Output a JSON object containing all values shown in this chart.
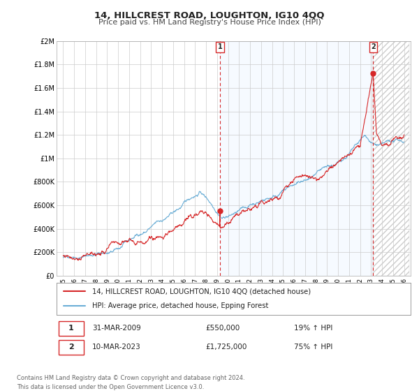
{
  "title": "14, HILLCREST ROAD, LOUGHTON, IG10 4QQ",
  "subtitle": "Price paid vs. HM Land Registry's House Price Index (HPI)",
  "ylabel_ticks": [
    "£0",
    "£200K",
    "£400K",
    "£600K",
    "£800K",
    "£1M",
    "£1.2M",
    "£1.4M",
    "£1.6M",
    "£1.8M",
    "£2M"
  ],
  "ytick_values": [
    0,
    200000,
    400000,
    600000,
    800000,
    1000000,
    1200000,
    1400000,
    1600000,
    1800000,
    2000000
  ],
  "ylim": [
    0,
    2000000
  ],
  "hpi_color": "#6baed6",
  "price_color": "#d62728",
  "marker1_year": 2009.25,
  "marker1_price": 550000,
  "marker2_year": 2023.19,
  "marker2_price": 1725000,
  "legend_line1": "14, HILLCREST ROAD, LOUGHTON, IG10 4QQ (detached house)",
  "legend_line2": "HPI: Average price, detached house, Epping Forest",
  "note1_date": "31-MAR-2009",
  "note1_price": "£550,000",
  "note1_hpi": "19% ↑ HPI",
  "note2_date": "10-MAR-2023",
  "note2_price": "£1,725,000",
  "note2_hpi": "75% ↑ HPI",
  "footer": "Contains HM Land Registry data © Crown copyright and database right 2024.\nThis data is licensed under the Open Government Licence v3.0.",
  "background_color": "#ffffff",
  "grid_color": "#cccccc",
  "shade_color": "#ddeeff",
  "hatch_color": "#cccccc"
}
